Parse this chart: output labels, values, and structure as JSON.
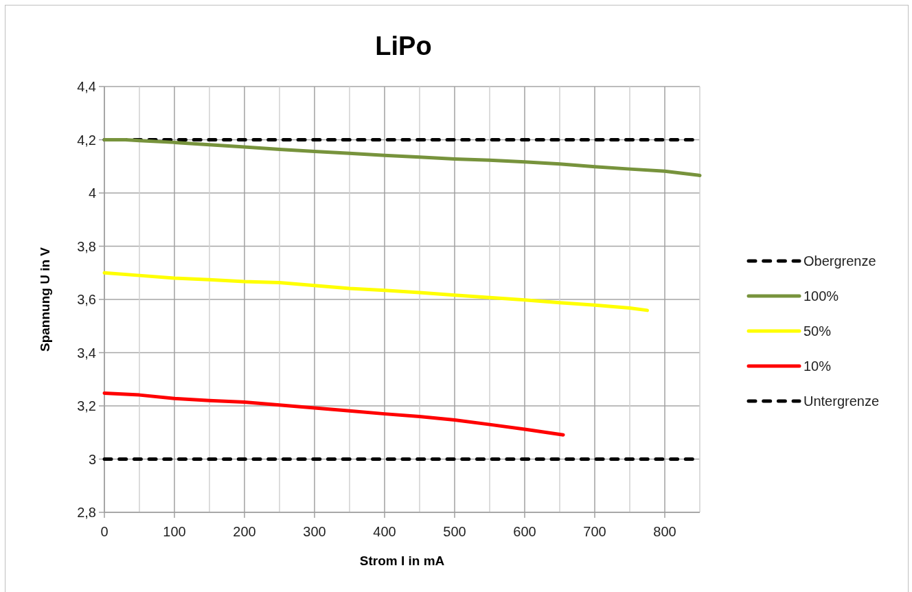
{
  "chart_data": {
    "type": "line",
    "title": "LiPo",
    "xlabel": "Strom I in mA",
    "ylabel": "Spannung U in V",
    "xlim": [
      0,
      850
    ],
    "xticks": [
      0,
      {
        "value": 50,
        "label": null
      },
      100,
      {
        "value": 150,
        "label": null
      },
      200,
      {
        "value": 250,
        "label": null
      },
      300,
      {
        "value": 350,
        "label": null
      },
      400,
      {
        "value": 450,
        "label": null
      },
      500,
      {
        "value": 550,
        "label": null
      },
      600,
      {
        "value": 650,
        "label": null
      },
      700,
      {
        "value": 750,
        "label": null
      },
      800,
      {
        "value": 850,
        "label": null
      }
    ],
    "ylim": [
      2.8,
      4.4
    ],
    "yticks": [
      {
        "value": 2.8,
        "label": "2,8"
      },
      3,
      {
        "value": 3.2,
        "label": "3,2"
      },
      {
        "value": 3.4,
        "label": "3,4"
      },
      {
        "value": 3.6,
        "label": "3,6"
      },
      {
        "value": 3.8,
        "label": "3,8"
      },
      4,
      {
        "value": 4.2,
        "label": "4,2"
      },
      {
        "value": 4.4,
        "label": "4,4"
      }
    ],
    "grid": true,
    "legend": "right",
    "series": [
      {
        "name": "Obergrenze",
        "color": "#000000",
        "line_style": "dashed",
        "x": [
          0,
          850
        ],
        "values": [
          4.2,
          4.2
        ]
      },
      {
        "name": "100%",
        "color": "#77933c",
        "line_style": "solid",
        "x": [
          0,
          30,
          50,
          100,
          150,
          200,
          250,
          300,
          350,
          400,
          450,
          500,
          550,
          600,
          650,
          700,
          750,
          800,
          850
        ],
        "values": [
          4.2,
          4.2,
          4.197,
          4.19,
          4.181,
          4.173,
          4.164,
          4.156,
          4.149,
          4.141,
          4.135,
          4.128,
          4.123,
          4.117,
          4.109,
          4.099,
          4.09,
          4.082,
          4.066
        ]
      },
      {
        "name": "50%",
        "color": "#ffff00",
        "line_style": "solid",
        "x": [
          0,
          50,
          100,
          150,
          200,
          250,
          300,
          350,
          400,
          450,
          500,
          550,
          600,
          650,
          700,
          750,
          775
        ],
        "values": [
          3.7,
          3.69,
          3.68,
          3.674,
          3.667,
          3.663,
          3.652,
          3.641,
          3.634,
          3.626,
          3.616,
          3.607,
          3.598,
          3.588,
          3.579,
          3.568,
          3.559
        ]
      },
      {
        "name": "10%",
        "color": "#ff0000",
        "line_style": "solid",
        "x": [
          0,
          50,
          100,
          150,
          200,
          250,
          300,
          350,
          400,
          450,
          500,
          550,
          600,
          655
        ],
        "values": [
          3.248,
          3.241,
          3.228,
          3.22,
          3.214,
          3.203,
          3.192,
          3.181,
          3.17,
          3.16,
          3.147,
          3.13,
          3.112,
          3.091
        ]
      },
      {
        "name": "Untergrenze",
        "color": "#000000",
        "line_style": "dashed",
        "x": [
          0,
          850
        ],
        "values": [
          3.0,
          3.0
        ]
      }
    ]
  }
}
